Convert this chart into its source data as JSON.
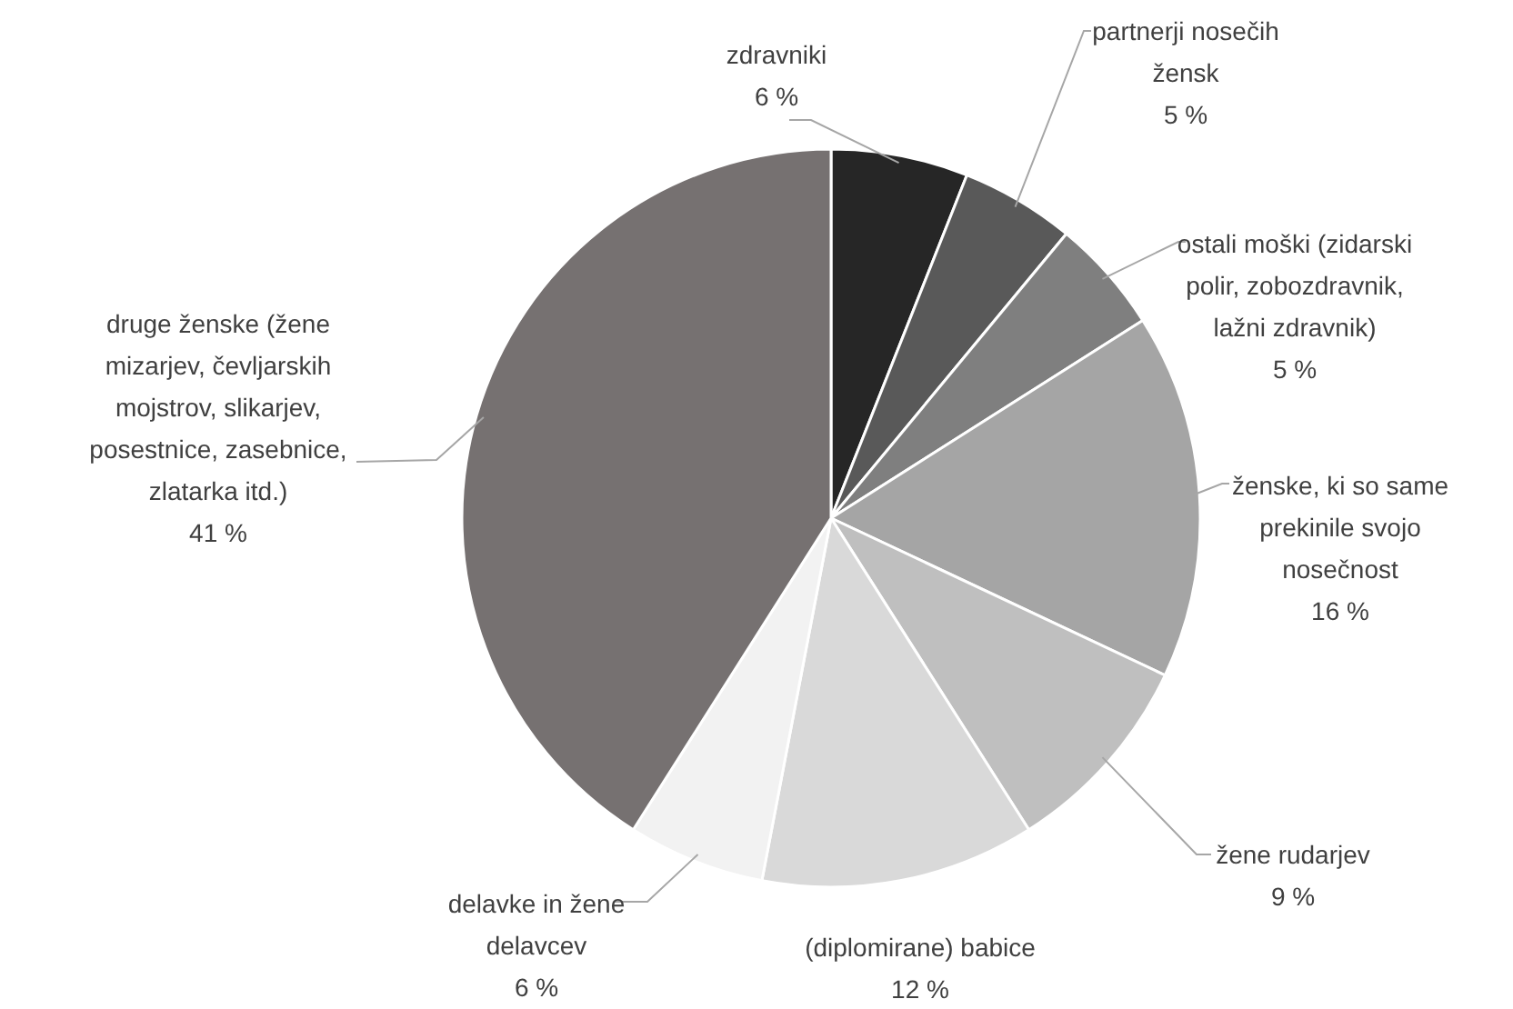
{
  "chart_data": {
    "type": "pie",
    "categories": [
      "zdravniki",
      "partnerji nosečih žensk",
      "ostali moški (zidarski polir, zobozdravnik, lažni zdravnik)",
      "ženske, ki so same prekinile svojo nosečnost",
      "žene rudarjev",
      "(diplomirane) babice",
      "delavke in žene delavcev",
      "druge ženske (žene mizarjev, čevljarskih mojstrov, slikarjev, posestnice, zasebnice, zlatarka itd.)"
    ],
    "values": [
      6,
      5,
      5,
      16,
      9,
      12,
      6,
      41
    ],
    "value_labels": [
      "6 %",
      "5 %",
      "5 %",
      "16 %",
      "9 %",
      "12 %",
      "6 %",
      "41 %"
    ],
    "colors": [
      "#262626",
      "#595959",
      "#7f7f7f",
      "#a5a5a5",
      "#bfbfbf",
      "#d9d9d9",
      "#f2f2f2",
      "#767171"
    ]
  }
}
